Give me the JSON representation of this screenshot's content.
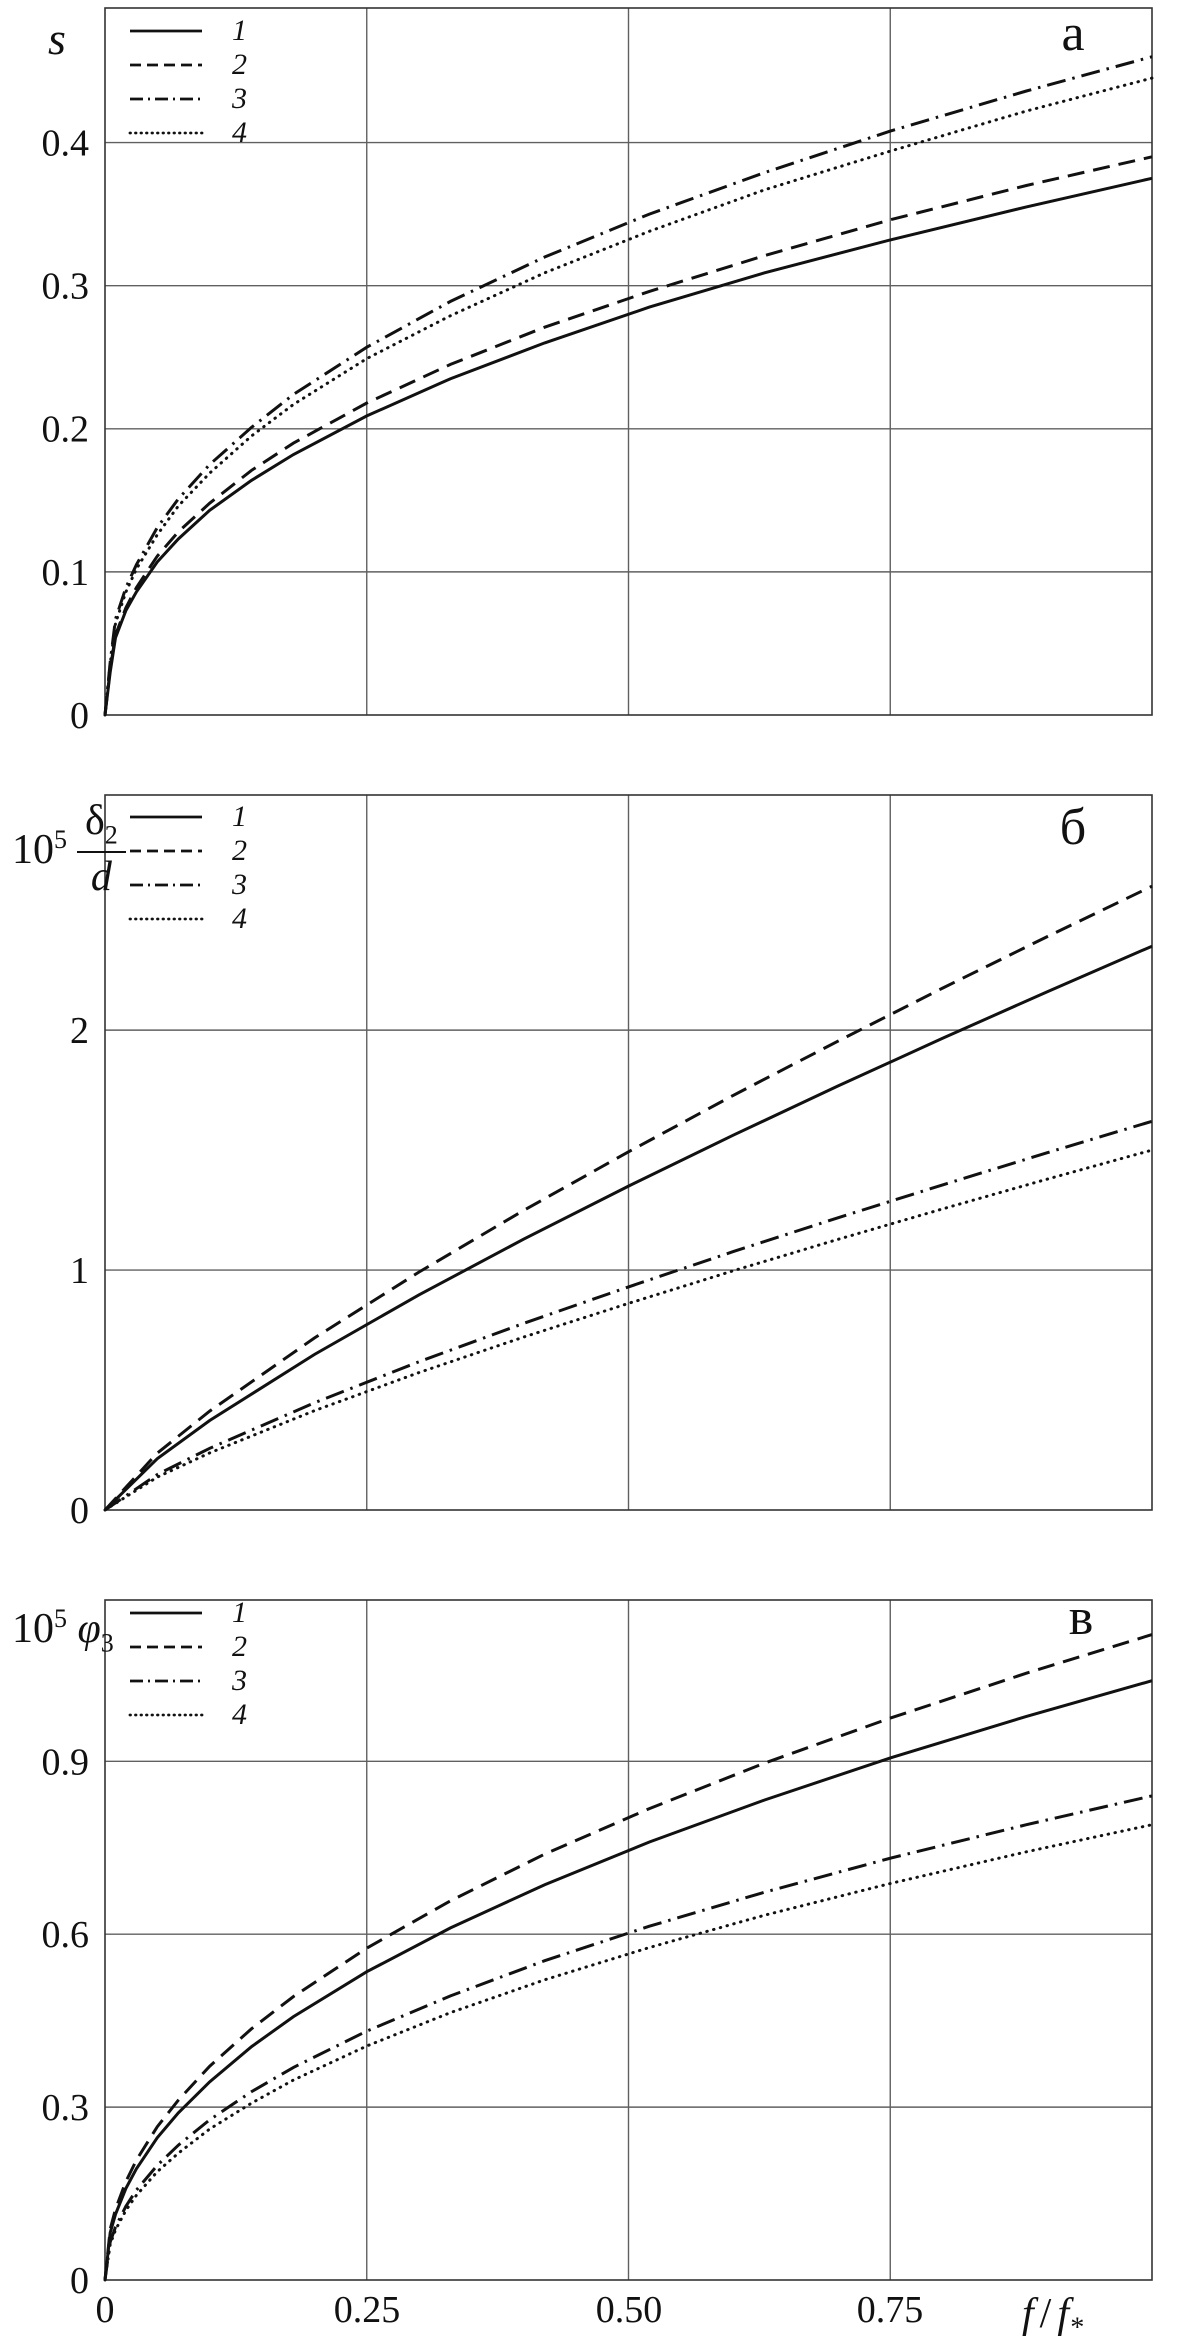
{
  "figure": {
    "background": "#ffffff",
    "line_color": "#111111",
    "grid_color": "#606060",
    "border_color": "#333333"
  },
  "panels": {
    "a": {
      "label": "а"
    },
    "b": {
      "label": "б"
    },
    "c": {
      "label": "в"
    }
  },
  "ylabels": {
    "a": {
      "main": "s"
    },
    "b": {
      "base": "10",
      "exp": "5",
      "num": "δ",
      "num_sub": "2",
      "den": "d"
    },
    "c": {
      "base": "10",
      "exp": "5",
      "sym": "φ",
      "sub": "3"
    }
  },
  "x_axis": {
    "ticks": [
      {
        "label": "0"
      },
      {
        "label": "0.25"
      },
      {
        "label": "0.50"
      },
      {
        "label": "0.75"
      }
    ],
    "label": {
      "f1": "f",
      "slash": "/",
      "f2": "f",
      "sub": "*"
    }
  },
  "chart_data": [
    {
      "type": "line",
      "panel_id": "a",
      "panel_label": "а",
      "ylabel": "s",
      "xlabel": "f / f*",
      "grid": true,
      "legend_position": "top-left",
      "xlim": [
        0,
        1
      ],
      "ylim": [
        0,
        0.494
      ],
      "x_ticks": [
        0,
        0.25,
        0.5,
        0.75
      ],
      "y_ticks": [
        {
          "v": 0,
          "label": "0"
        },
        {
          "v": 0.1,
          "label": "0.1"
        },
        {
          "v": 0.2,
          "label": "0.2"
        },
        {
          "v": 0.3,
          "label": "0.3"
        },
        {
          "v": 0.4,
          "label": "0.4"
        }
      ],
      "series": [
        {
          "name": "1",
          "line_style": "solid",
          "x": [
            0,
            0.005,
            0.01,
            0.02,
            0.03,
            0.05,
            0.07,
            0.1,
            0.14,
            0.18,
            0.25,
            0.33,
            0.42,
            0.52,
            0.63,
            0.75,
            0.88,
            1
          ],
          "y": [
            0,
            0.03,
            0.054,
            0.073,
            0.086,
            0.107,
            0.123,
            0.143,
            0.164,
            0.182,
            0.209,
            0.235,
            0.26,
            0.285,
            0.309,
            0.332,
            0.355,
            0.375
          ]
        },
        {
          "name": "2",
          "line_style": "dashed",
          "x": [
            0,
            0.005,
            0.01,
            0.02,
            0.03,
            0.05,
            0.07,
            0.1,
            0.14,
            0.18,
            0.25,
            0.33,
            0.42,
            0.52,
            0.63,
            0.75,
            0.88,
            1
          ],
          "y": [
            0,
            0.032,
            0.056,
            0.075,
            0.089,
            0.111,
            0.128,
            0.148,
            0.171,
            0.19,
            0.218,
            0.245,
            0.271,
            0.296,
            0.321,
            0.346,
            0.37,
            0.39
          ]
        },
        {
          "name": "3",
          "line_style": "dashdot",
          "x": [
            0,
            0.005,
            0.01,
            0.02,
            0.03,
            0.05,
            0.07,
            0.1,
            0.14,
            0.18,
            0.25,
            0.33,
            0.42,
            0.52,
            0.63,
            0.75,
            0.88,
            1
          ],
          "y": [
            0,
            0.037,
            0.067,
            0.089,
            0.105,
            0.131,
            0.151,
            0.175,
            0.201,
            0.224,
            0.257,
            0.289,
            0.32,
            0.35,
            0.379,
            0.408,
            0.436,
            0.46
          ]
        },
        {
          "name": "4",
          "line_style": "dotted",
          "x": [
            0,
            0.005,
            0.01,
            0.02,
            0.03,
            0.05,
            0.07,
            0.1,
            0.14,
            0.18,
            0.25,
            0.33,
            0.42,
            0.52,
            0.63,
            0.75,
            0.88,
            1
          ],
          "y": [
            0,
            0.036,
            0.064,
            0.086,
            0.102,
            0.126,
            0.146,
            0.169,
            0.195,
            0.217,
            0.249,
            0.279,
            0.309,
            0.338,
            0.367,
            0.394,
            0.422,
            0.445
          ]
        }
      ]
    },
    {
      "type": "line",
      "panel_id": "b",
      "panel_label": "б",
      "ylabel": "10^5 δ2/d",
      "xlabel": "f / f*",
      "grid": true,
      "legend_position": "top-left",
      "xlim": [
        0,
        1
      ],
      "ylim": [
        0,
        2.98
      ],
      "x_ticks": [
        0,
        0.25,
        0.5,
        0.75
      ],
      "y_ticks": [
        {
          "v": 0,
          "label": "0"
        },
        {
          "v": 1,
          "label": "1"
        },
        {
          "v": 2,
          "label": "2"
        }
      ],
      "series": [
        {
          "name": "1",
          "line_style": "solid",
          "x": [
            0,
            0.05,
            0.1,
            0.2,
            0.3,
            0.4,
            0.5,
            0.6,
            0.7,
            0.8,
            0.9,
            1
          ],
          "y": [
            0,
            0.214,
            0.373,
            0.648,
            0.897,
            1.129,
            1.35,
            1.562,
            1.767,
            1.966,
            2.16,
            2.35
          ]
        },
        {
          "name": "2",
          "line_style": "dashed",
          "x": [
            0,
            0.05,
            0.1,
            0.2,
            0.3,
            0.4,
            0.5,
            0.6,
            0.7,
            0.8,
            0.9,
            1
          ],
          "y": [
            0,
            0.237,
            0.412,
            0.717,
            0.992,
            1.249,
            1.493,
            1.728,
            1.954,
            2.175,
            2.39,
            2.6
          ]
        },
        {
          "name": "3",
          "line_style": "dashdot",
          "x": [
            0,
            0.05,
            0.1,
            0.2,
            0.3,
            0.4,
            0.5,
            0.6,
            0.7,
            0.8,
            0.9,
            1
          ],
          "y": [
            0,
            0.148,
            0.257,
            0.447,
            0.618,
            0.778,
            0.93,
            1.077,
            1.218,
            1.355,
            1.489,
            1.62
          ]
        },
        {
          "name": "4",
          "line_style": "dotted",
          "x": [
            0,
            0.05,
            0.1,
            0.2,
            0.3,
            0.4,
            0.5,
            0.6,
            0.7,
            0.8,
            0.9,
            1
          ],
          "y": [
            0,
            0.137,
            0.238,
            0.414,
            0.573,
            0.721,
            0.861,
            0.997,
            1.128,
            1.255,
            1.379,
            1.5
          ]
        }
      ]
    },
    {
      "type": "line",
      "panel_id": "c",
      "panel_label": "в",
      "ylabel": "10^5 φ3",
      "xlabel": "f / f*",
      "grid": true,
      "legend_position": "top-left",
      "xlim": [
        0,
        1
      ],
      "ylim": [
        0,
        1.18
      ],
      "x_ticks": [
        0,
        0.25,
        0.5,
        0.75
      ],
      "y_ticks": [
        {
          "v": 0,
          "label": "0"
        },
        {
          "v": 0.3,
          "label": "0.3"
        },
        {
          "v": 0.6,
          "label": "0.6"
        },
        {
          "v": 0.9,
          "label": "0.9"
        }
      ],
      "series": [
        {
          "name": "1",
          "line_style": "solid",
          "x": [
            0,
            0.005,
            0.01,
            0.02,
            0.03,
            0.05,
            0.07,
            0.1,
            0.14,
            0.18,
            0.25,
            0.33,
            0.42,
            0.52,
            0.63,
            0.75,
            0.88,
            1
          ],
          "y": [
            0,
            0.082,
            0.114,
            0.159,
            0.193,
            0.247,
            0.29,
            0.344,
            0.405,
            0.457,
            0.535,
            0.611,
            0.686,
            0.76,
            0.833,
            0.906,
            0.978,
            1.04
          ]
        },
        {
          "name": "2",
          "line_style": "dashed",
          "x": [
            0,
            0.005,
            0.01,
            0.02,
            0.03,
            0.05,
            0.07,
            0.1,
            0.14,
            0.18,
            0.25,
            0.33,
            0.42,
            0.52,
            0.63,
            0.75,
            0.88,
            1
          ],
          "y": [
            0,
            0.088,
            0.123,
            0.171,
            0.208,
            0.266,
            0.312,
            0.371,
            0.436,
            0.492,
            0.576,
            0.658,
            0.739,
            0.818,
            0.897,
            0.975,
            1.053,
            1.12
          ]
        },
        {
          "name": "3",
          "line_style": "dashdot",
          "x": [
            0,
            0.005,
            0.01,
            0.02,
            0.03,
            0.05,
            0.07,
            0.1,
            0.14,
            0.18,
            0.25,
            0.33,
            0.42,
            0.52,
            0.63,
            0.75,
            0.88,
            1
          ],
          "y": [
            0,
            0.066,
            0.092,
            0.128,
            0.156,
            0.199,
            0.234,
            0.278,
            0.327,
            0.369,
            0.432,
            0.493,
            0.554,
            0.614,
            0.673,
            0.732,
            0.79,
            0.84
          ]
        },
        {
          "name": "4",
          "line_style": "dotted",
          "x": [
            0,
            0.005,
            0.01,
            0.02,
            0.03,
            0.05,
            0.07,
            0.1,
            0.14,
            0.18,
            0.25,
            0.33,
            0.42,
            0.52,
            0.63,
            0.75,
            0.88,
            1
          ],
          "y": [
            0,
            0.062,
            0.087,
            0.121,
            0.147,
            0.188,
            0.22,
            0.262,
            0.307,
            0.347,
            0.406,
            0.464,
            0.521,
            0.577,
            0.633,
            0.688,
            0.743,
            0.79
          ]
        }
      ]
    }
  ]
}
